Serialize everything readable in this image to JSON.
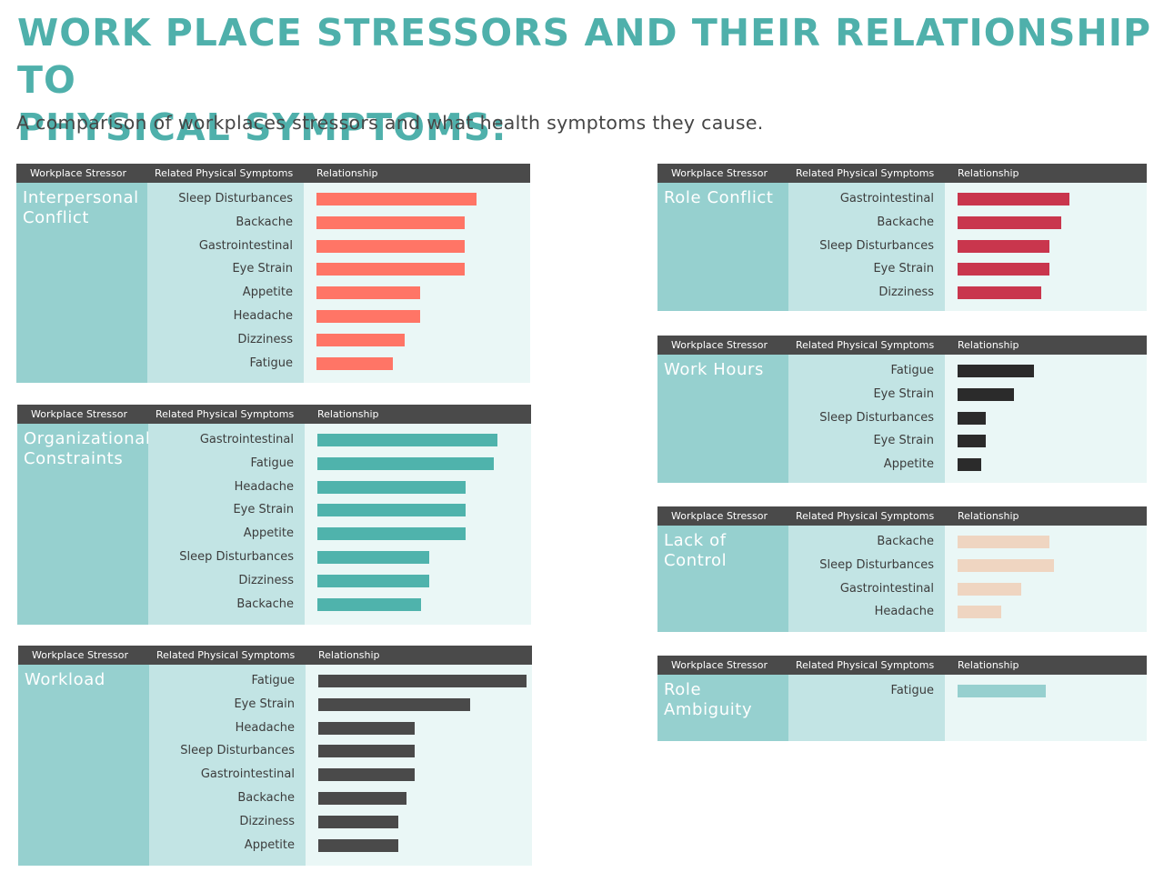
{
  "title": "WORK PLACE STRESSORS AND THEIR RELATIONSHIP TO\nPHYSICAL SYMPTOMS:",
  "subtitle": "A comparison of workplaces stressors and what health symptoms they cause.",
  "header_labels": {
    "stressor": "Workplace Stressor",
    "symptoms": "Related Physical Symptoms",
    "relationship": "Relationship"
  },
  "chart_data": [
    {
      "type": "bar",
      "stressor": "Interpersonal Conflict",
      "color": "#ff7566",
      "categories": [
        "Sleep Disturbances",
        "Backache",
        "Gastrointestinal",
        "Eye Strain",
        "Appetite",
        "Headache",
        "Dizziness",
        "Fatigue"
      ],
      "values": [
        0.4,
        0.37,
        0.37,
        0.37,
        0.26,
        0.26,
        0.22,
        0.19
      ]
    },
    {
      "type": "bar",
      "stressor": "Organizational Constraints",
      "color": "#4fb3ac",
      "categories": [
        "Gastrointestinal",
        "Fatigue",
        "Headache",
        "Eye Strain",
        "Appetite",
        "Sleep Disturbances",
        "Dizziness",
        "Backache"
      ],
      "values": [
        0.45,
        0.44,
        0.37,
        0.37,
        0.37,
        0.28,
        0.28,
        0.26
      ]
    },
    {
      "type": "bar",
      "stressor": "Workload",
      "color": "#4a4a4a",
      "categories": [
        "Fatigue",
        "Eye Strain",
        "Headache",
        "Sleep Disturbances",
        "Gastrointestinal",
        "Backache",
        "Dizziness",
        "Appetite"
      ],
      "values": [
        0.52,
        0.38,
        0.24,
        0.24,
        0.24,
        0.22,
        0.2,
        0.2
      ]
    },
    {
      "type": "bar",
      "stressor": "Role Conflict",
      "color": "#c9364d",
      "categories": [
        "Gastrointestinal",
        "Backache",
        "Sleep Disturbances",
        "Eye Strain",
        "Dizziness"
      ],
      "values": [
        0.28,
        0.26,
        0.23,
        0.23,
        0.21
      ]
    },
    {
      "type": "bar",
      "stressor": "Work Hours",
      "color": "#2b2b2b",
      "categories": [
        "Fatigue",
        "Eye Strain",
        "Sleep Disturbances",
        "Eye Strain",
        "Appetite"
      ],
      "values": [
        0.19,
        0.14,
        0.07,
        0.07,
        0.06
      ]
    },
    {
      "type": "bar",
      "stressor": "Lack of Control",
      "color": "#efd5c1",
      "categories": [
        "Backache",
        "Sleep Disturbances",
        "Gastrointestinal",
        "Headache"
      ],
      "values": [
        0.23,
        0.24,
        0.16,
        0.11
      ]
    },
    {
      "type": "bar",
      "stressor": "Role Ambiguity",
      "color": "#96d0cf",
      "categories": [
        "Fatigue"
      ],
      "values": [
        0.22
      ]
    }
  ]
}
